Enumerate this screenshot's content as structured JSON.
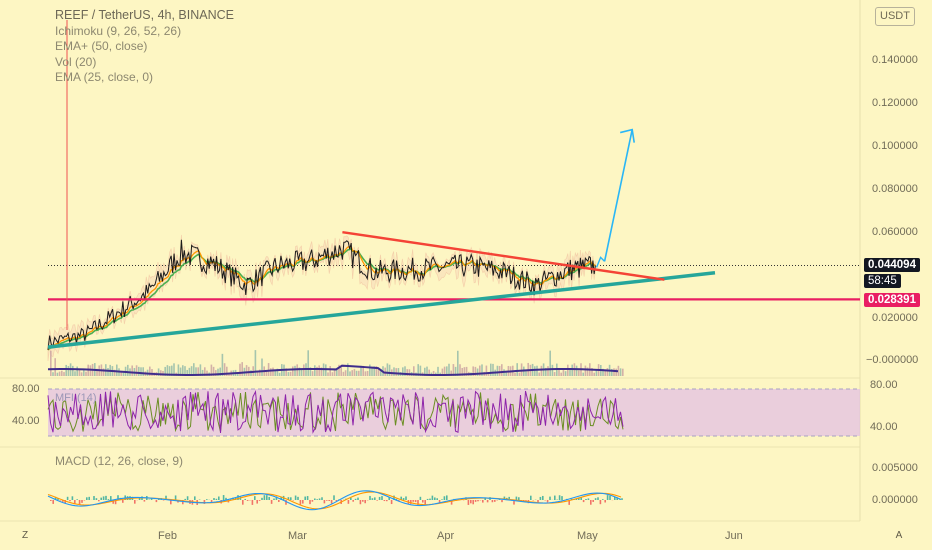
{
  "legend": {
    "title": "REEF / TetherUS, 4h, BINANCE",
    "ichimoku": "Ichimoku (9, 26, 52, 26)",
    "ema_plus": "EMA+ (50, close)",
    "vol": "Vol (20)",
    "ema": "EMA (25, close, 0)"
  },
  "mfi_label": "MFI (14)",
  "macd_label": "MACD (12, 26, close, 9)",
  "currency": "USDT",
  "corner_left": "Z",
  "corner_right": "A",
  "price_axis": {
    "ticks": [
      "0.140000",
      "0.120000",
      "0.100000",
      "0.080000",
      "0.060000",
      "0.020000"
    ],
    "current_price": "0.044094",
    "countdown": "58:45",
    "support_price": "0.028391"
  },
  "volume_axis": {
    "tick": "−0.000000"
  },
  "mfi_axis": {
    "left_ticks": [
      "80.00",
      "40.00"
    ],
    "right_ticks": [
      "80.00",
      "40.00"
    ]
  },
  "macd_axis": {
    "ticks": [
      "0.005000",
      "0.000000"
    ]
  },
  "time_axis": {
    "labels": [
      "Feb",
      "Mar",
      "Apr",
      "May",
      "Jun"
    ]
  },
  "colors": {
    "background": "#fdf6c3",
    "support_line": "#e91e63",
    "uptrend_line": "#26a69a",
    "downtrend_line": "#f44336",
    "projection_arrow": "#29b6f6",
    "volume": "#8fa0b0",
    "mfi_band": "#e1bee7",
    "mfi_line": "#8e24aa",
    "macd_line": "#2196f3",
    "signal_line": "#ff9800"
  },
  "chart_data": {
    "type": "line",
    "title": "REEF / TetherUS, 4h, BINANCE",
    "x": [
      "2021-01-12",
      "2021-01-20",
      "2021-01-27",
      "2021-02-03",
      "2021-02-10",
      "2021-02-17",
      "2021-02-24",
      "2021-03-03",
      "2021-03-10",
      "2021-03-17",
      "2021-03-24",
      "2021-03-31",
      "2021-04-07",
      "2021-04-14",
      "2021-04-21",
      "2021-04-28",
      "2021-05-05",
      "2021-05-11"
    ],
    "series": [
      {
        "name": "REEF / TetherUS",
        "values": [
          0.0085,
          0.012,
          0.022,
          0.032,
          0.05,
          0.045,
          0.035,
          0.044,
          0.046,
          0.052,
          0.041,
          0.042,
          0.043,
          0.044,
          0.041,
          0.035,
          0.042,
          0.044094
        ]
      }
    ],
    "annotations": {
      "current_price": 0.044094,
      "support_level": 0.028391,
      "descending_resistance": [
        [
          "2021-03-17",
          0.0595
        ],
        [
          "2021-05-26",
          0.0375
        ]
      ],
      "ascending_support": [
        [
          "2021-01-12",
          0.0063
        ],
        [
          "2021-06-06",
          0.0407
        ]
      ],
      "projection_arrow": [
        [
          "2021-05-13",
          0.046
        ],
        [
          "2021-05-19",
          0.107
        ]
      ]
    },
    "price_axis_ticks": [
      0.14,
      0.12,
      0.1,
      0.08,
      0.06,
      0.02
    ],
    "time_labels": [
      "Feb",
      "Mar",
      "Apr",
      "May",
      "Jun"
    ]
  }
}
